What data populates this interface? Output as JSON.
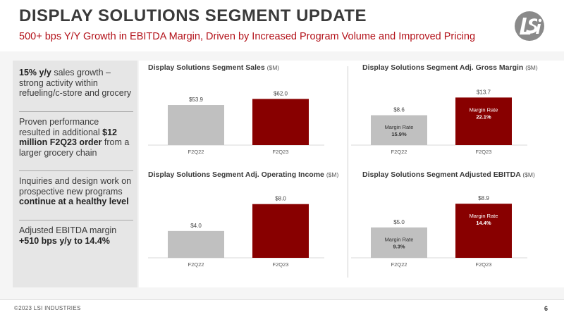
{
  "header": {
    "title": "DISPLAY SOLUTIONS SEGMENT UPDATE",
    "subtitle": "500+ bps Y/Y Growth in EBITDA Margin, Driven by Increased Program Volume and Improved Pricing"
  },
  "bullets": [
    {
      "parts": [
        {
          "text": "15% y/y",
          "bold": true
        },
        {
          "text": " sales growth – strong activity within refueling/c-store and grocery",
          "bold": false
        }
      ]
    },
    {
      "parts": [
        {
          "text": "Proven performance resulted in additional ",
          "bold": false
        },
        {
          "text": "$12 million F2Q23 order",
          "bold": true
        },
        {
          "text": " from a larger grocery chain",
          "bold": false
        }
      ]
    },
    {
      "parts": [
        {
          "text": "Inquiries and design work on prospective new programs ",
          "bold": false
        },
        {
          "text": "continue at a healthy level",
          "bold": true
        }
      ]
    },
    {
      "parts": [
        {
          "text": "Adjusted EBITDA margin ",
          "bold": false
        },
        {
          "text": "+510 bps y/y to 14.4%",
          "bold": true
        }
      ]
    }
  ],
  "colors": {
    "prior_bar": "#c0c0c0",
    "current_bar": "#880000",
    "accent": "#b3121a"
  },
  "chart_data": [
    {
      "type": "bar",
      "title": "Display Solutions Segment Sales",
      "unit": "($M)",
      "categories": [
        "F2Q22",
        "F2Q23"
      ],
      "values": [
        53.9,
        62.0
      ],
      "value_labels": [
        "$53.9",
        "$62.0"
      ],
      "inner_labels": [
        null,
        null
      ],
      "ylim": [
        0,
        70
      ]
    },
    {
      "type": "bar",
      "title": "Display Solutions Segment Adj. Gross Margin",
      "unit": "($M)",
      "categories": [
        "F2Q22",
        "F2Q23"
      ],
      "values": [
        8.6,
        13.7
      ],
      "value_labels": [
        "$8.6",
        "$13.7"
      ],
      "inner_labels": [
        {
          "label": "Margin Rate",
          "value": "15.9%"
        },
        {
          "label": "Margin Rate",
          "value": "22.1%"
        }
      ],
      "ylim": [
        0,
        15
      ]
    },
    {
      "type": "bar",
      "title": "Display Solutions Segment Adj. Operating Income",
      "unit": "($M)",
      "categories": [
        "F2Q22",
        "F2Q23"
      ],
      "values": [
        4.0,
        8.0
      ],
      "value_labels": [
        "$4.0",
        "$8.0"
      ],
      "inner_labels": [
        null,
        null
      ],
      "ylim": [
        0,
        8.6
      ]
    },
    {
      "type": "bar",
      "title": "Display Solutions Segment Adjusted EBITDA",
      "unit": "($M)",
      "categories": [
        "F2Q22",
        "F2Q23"
      ],
      "values": [
        5.0,
        8.9
      ],
      "value_labels": [
        "$5.0",
        "$8.9"
      ],
      "inner_labels": [
        {
          "label": "Margin Rate",
          "value": "9.3%"
        },
        {
          "label": "Margin Rate",
          "value": "14.4%"
        }
      ],
      "ylim": [
        0,
        9.5
      ]
    }
  ],
  "footer": {
    "copyright": "©2023 LSI INDUSTRIES",
    "page": "6"
  },
  "logo": {
    "icon": "lsi-logo-icon"
  }
}
